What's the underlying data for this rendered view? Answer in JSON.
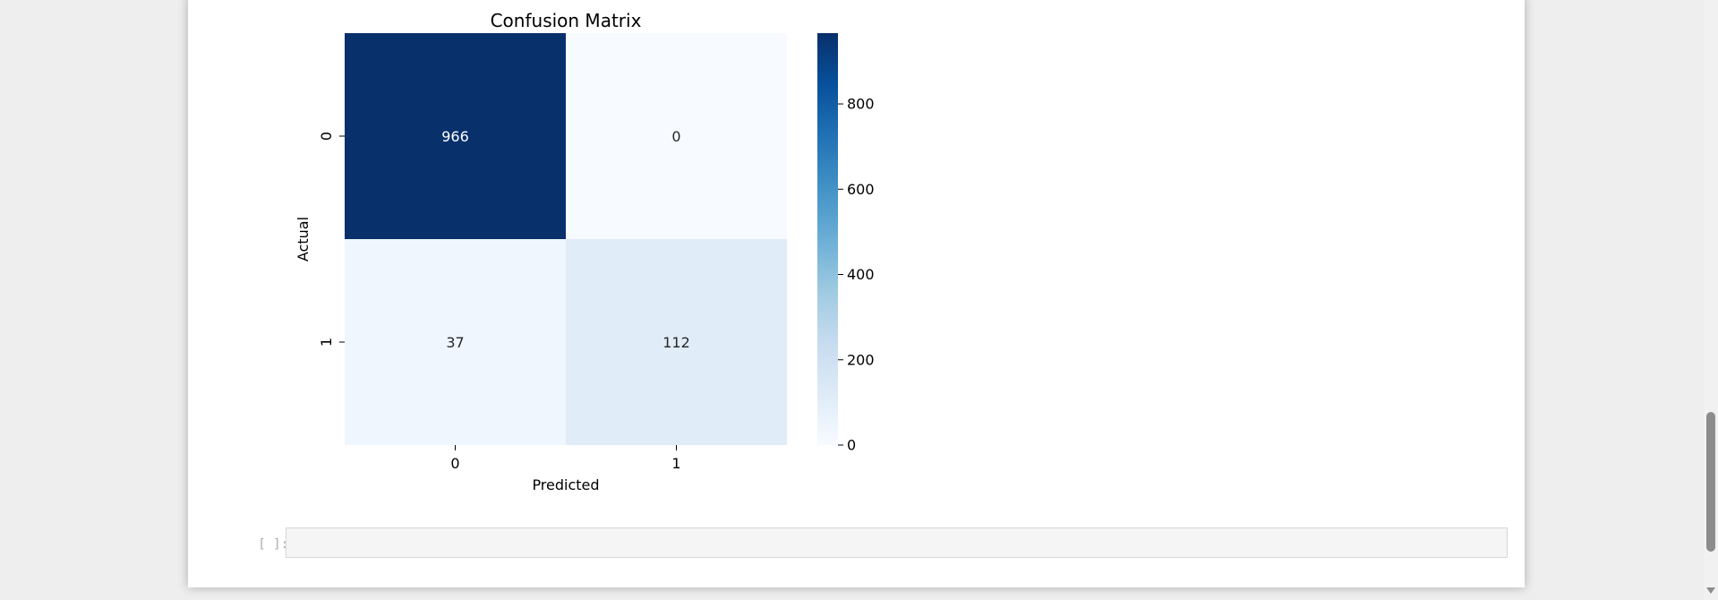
{
  "output_cell": {
    "chart_data": {
      "type": "heatmap",
      "title": "Confusion Matrix",
      "xlabel": "Predicted",
      "ylabel": "Actual",
      "x_categories": [
        "0",
        "1"
      ],
      "y_categories": [
        "0",
        "1"
      ],
      "values": [
        [
          966,
          0
        ],
        [
          37,
          112
        ]
      ],
      "colormap": "Blues",
      "colors": {
        "min": "#f7fbff",
        "max": "#08306b"
      },
      "colorbar": {
        "range": [
          0,
          966
        ],
        "ticks": [
          0,
          200,
          400,
          600,
          800
        ]
      },
      "annotations": true,
      "grid": false,
      "legend": "colorbar right"
    }
  },
  "empty_cell": {
    "prompt": "[ ]:"
  },
  "scrollbar": {
    "position": 0.84
  }
}
